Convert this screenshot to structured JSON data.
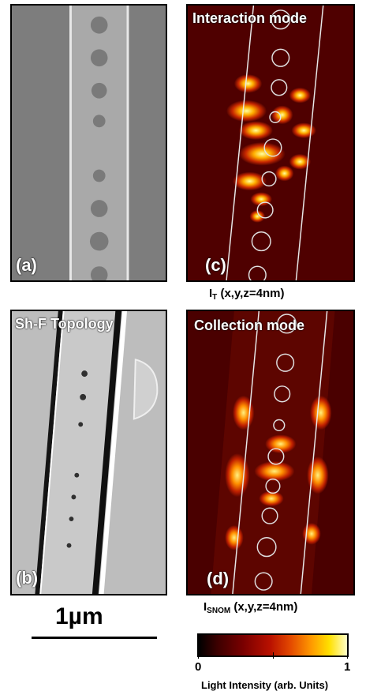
{
  "panels": {
    "a": {
      "letter": "(a)"
    },
    "b": {
      "letter": "(b)",
      "title": "Sh-F Topology"
    },
    "c": {
      "letter": "(c)",
      "title": "Interaction mode"
    },
    "d": {
      "letter": "(d)",
      "title": "Collection mode"
    }
  },
  "captions": {
    "c": {
      "main": "I",
      "sub": "T",
      "rest": " (x,y,z=4nm)"
    },
    "d": {
      "main": "I",
      "sub": "SNOM",
      "rest": " (x,y,z=4nm)"
    }
  },
  "scale_bar": {
    "label": "1µm"
  },
  "colorbar": {
    "tick_min": "0",
    "tick_max": "1",
    "label": "Light Intensity (arb. Units)",
    "colors": [
      "#000000",
      "#7a0000",
      "#e44a00",
      "#ffe000",
      "#ffffc8"
    ]
  }
}
